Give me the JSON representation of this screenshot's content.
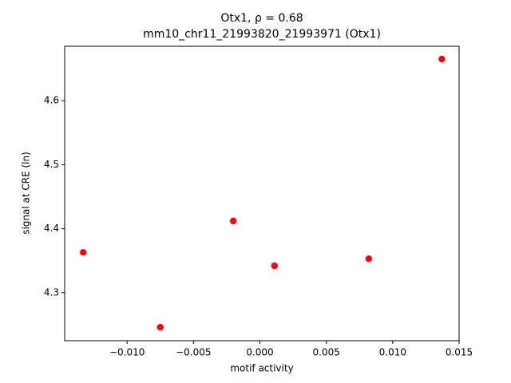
{
  "chart_data": {
    "type": "scatter",
    "title": "Otx1, ρ = 0.68",
    "subtitle": "mm10_chr11_21993820_21993971 (Otx1)",
    "x_label": "motif activity",
    "y_label": "signal at CRE (ln)",
    "color": "#ff0000",
    "grid": false,
    "x": [
      -0.0133,
      -0.0075,
      -0.002,
      0.0011,
      0.0082,
      0.0137
    ],
    "values": [
      4.363,
      4.246,
      4.412,
      4.342,
      4.353,
      4.665
    ],
    "xlim": [
      -0.0147,
      0.015
    ],
    "ylim": [
      4.225,
      4.685
    ],
    "xticks": [
      {
        "value": -0.01,
        "label": "−0.010"
      },
      {
        "value": -0.005,
        "label": "−0.005"
      },
      {
        "value": 0,
        "label": "0.000"
      },
      {
        "value": 0.005,
        "label": "0.005"
      },
      {
        "value": 0.01,
        "label": "0.010"
      },
      {
        "value": 0.015,
        "label": "0.015"
      }
    ],
    "yticks": [
      4.3,
      4.4,
      4.5,
      4.6
    ]
  }
}
